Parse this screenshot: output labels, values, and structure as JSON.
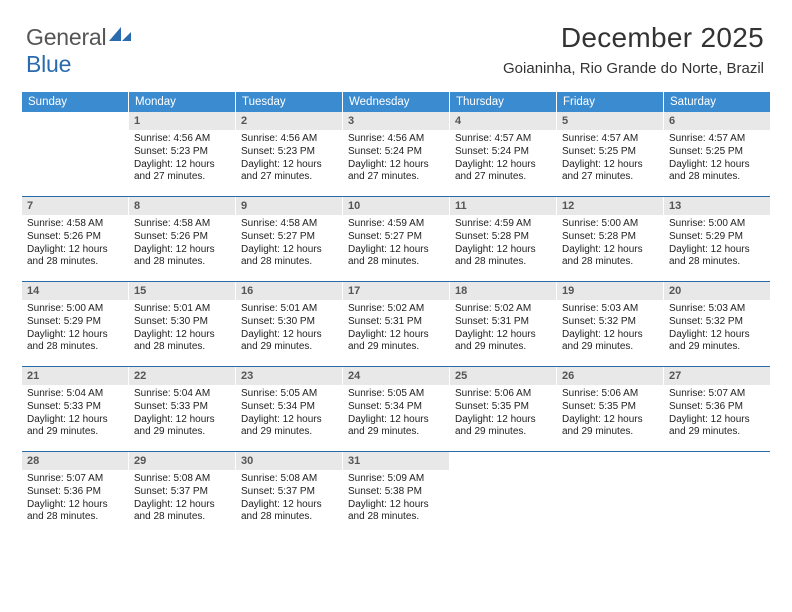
{
  "logo": {
    "text_general": "General",
    "text_blue": "Blue"
  },
  "header": {
    "title": "December 2025",
    "subtitle": "Goianinha, Rio Grande do Norte, Brazil"
  },
  "colors": {
    "header_bg": "#3b8bd0",
    "header_text": "#ffffff",
    "week_border": "#2b6aa8",
    "daynum_bg": "#e8e8e8",
    "daynum_text": "#555555",
    "body_text": "#222222",
    "logo_gray": "#555555",
    "logo_blue": "#2a6bb0"
  },
  "day_headers": [
    "Sunday",
    "Monday",
    "Tuesday",
    "Wednesday",
    "Thursday",
    "Friday",
    "Saturday"
  ],
  "weeks": [
    [
      {
        "day": "",
        "sunrise": "",
        "sunset": "",
        "day1": "",
        "day2": ""
      },
      {
        "day": "1",
        "sunrise": "Sunrise: 4:56 AM",
        "sunset": "Sunset: 5:23 PM",
        "day1": "Daylight: 12 hours",
        "day2": "and 27 minutes."
      },
      {
        "day": "2",
        "sunrise": "Sunrise: 4:56 AM",
        "sunset": "Sunset: 5:23 PM",
        "day1": "Daylight: 12 hours",
        "day2": "and 27 minutes."
      },
      {
        "day": "3",
        "sunrise": "Sunrise: 4:56 AM",
        "sunset": "Sunset: 5:24 PM",
        "day1": "Daylight: 12 hours",
        "day2": "and 27 minutes."
      },
      {
        "day": "4",
        "sunrise": "Sunrise: 4:57 AM",
        "sunset": "Sunset: 5:24 PM",
        "day1": "Daylight: 12 hours",
        "day2": "and 27 minutes."
      },
      {
        "day": "5",
        "sunrise": "Sunrise: 4:57 AM",
        "sunset": "Sunset: 5:25 PM",
        "day1": "Daylight: 12 hours",
        "day2": "and 27 minutes."
      },
      {
        "day": "6",
        "sunrise": "Sunrise: 4:57 AM",
        "sunset": "Sunset: 5:25 PM",
        "day1": "Daylight: 12 hours",
        "day2": "and 28 minutes."
      }
    ],
    [
      {
        "day": "7",
        "sunrise": "Sunrise: 4:58 AM",
        "sunset": "Sunset: 5:26 PM",
        "day1": "Daylight: 12 hours",
        "day2": "and 28 minutes."
      },
      {
        "day": "8",
        "sunrise": "Sunrise: 4:58 AM",
        "sunset": "Sunset: 5:26 PM",
        "day1": "Daylight: 12 hours",
        "day2": "and 28 minutes."
      },
      {
        "day": "9",
        "sunrise": "Sunrise: 4:58 AM",
        "sunset": "Sunset: 5:27 PM",
        "day1": "Daylight: 12 hours",
        "day2": "and 28 minutes."
      },
      {
        "day": "10",
        "sunrise": "Sunrise: 4:59 AM",
        "sunset": "Sunset: 5:27 PM",
        "day1": "Daylight: 12 hours",
        "day2": "and 28 minutes."
      },
      {
        "day": "11",
        "sunrise": "Sunrise: 4:59 AM",
        "sunset": "Sunset: 5:28 PM",
        "day1": "Daylight: 12 hours",
        "day2": "and 28 minutes."
      },
      {
        "day": "12",
        "sunrise": "Sunrise: 5:00 AM",
        "sunset": "Sunset: 5:28 PM",
        "day1": "Daylight: 12 hours",
        "day2": "and 28 minutes."
      },
      {
        "day": "13",
        "sunrise": "Sunrise: 5:00 AM",
        "sunset": "Sunset: 5:29 PM",
        "day1": "Daylight: 12 hours",
        "day2": "and 28 minutes."
      }
    ],
    [
      {
        "day": "14",
        "sunrise": "Sunrise: 5:00 AM",
        "sunset": "Sunset: 5:29 PM",
        "day1": "Daylight: 12 hours",
        "day2": "and 28 minutes."
      },
      {
        "day": "15",
        "sunrise": "Sunrise: 5:01 AM",
        "sunset": "Sunset: 5:30 PM",
        "day1": "Daylight: 12 hours",
        "day2": "and 28 minutes."
      },
      {
        "day": "16",
        "sunrise": "Sunrise: 5:01 AM",
        "sunset": "Sunset: 5:30 PM",
        "day1": "Daylight: 12 hours",
        "day2": "and 29 minutes."
      },
      {
        "day": "17",
        "sunrise": "Sunrise: 5:02 AM",
        "sunset": "Sunset: 5:31 PM",
        "day1": "Daylight: 12 hours",
        "day2": "and 29 minutes."
      },
      {
        "day": "18",
        "sunrise": "Sunrise: 5:02 AM",
        "sunset": "Sunset: 5:31 PM",
        "day1": "Daylight: 12 hours",
        "day2": "and 29 minutes."
      },
      {
        "day": "19",
        "sunrise": "Sunrise: 5:03 AM",
        "sunset": "Sunset: 5:32 PM",
        "day1": "Daylight: 12 hours",
        "day2": "and 29 minutes."
      },
      {
        "day": "20",
        "sunrise": "Sunrise: 5:03 AM",
        "sunset": "Sunset: 5:32 PM",
        "day1": "Daylight: 12 hours",
        "day2": "and 29 minutes."
      }
    ],
    [
      {
        "day": "21",
        "sunrise": "Sunrise: 5:04 AM",
        "sunset": "Sunset: 5:33 PM",
        "day1": "Daylight: 12 hours",
        "day2": "and 29 minutes."
      },
      {
        "day": "22",
        "sunrise": "Sunrise: 5:04 AM",
        "sunset": "Sunset: 5:33 PM",
        "day1": "Daylight: 12 hours",
        "day2": "and 29 minutes."
      },
      {
        "day": "23",
        "sunrise": "Sunrise: 5:05 AM",
        "sunset": "Sunset: 5:34 PM",
        "day1": "Daylight: 12 hours",
        "day2": "and 29 minutes."
      },
      {
        "day": "24",
        "sunrise": "Sunrise: 5:05 AM",
        "sunset": "Sunset: 5:34 PM",
        "day1": "Daylight: 12 hours",
        "day2": "and 29 minutes."
      },
      {
        "day": "25",
        "sunrise": "Sunrise: 5:06 AM",
        "sunset": "Sunset: 5:35 PM",
        "day1": "Daylight: 12 hours",
        "day2": "and 29 minutes."
      },
      {
        "day": "26",
        "sunrise": "Sunrise: 5:06 AM",
        "sunset": "Sunset: 5:35 PM",
        "day1": "Daylight: 12 hours",
        "day2": "and 29 minutes."
      },
      {
        "day": "27",
        "sunrise": "Sunrise: 5:07 AM",
        "sunset": "Sunset: 5:36 PM",
        "day1": "Daylight: 12 hours",
        "day2": "and 29 minutes."
      }
    ],
    [
      {
        "day": "28",
        "sunrise": "Sunrise: 5:07 AM",
        "sunset": "Sunset: 5:36 PM",
        "day1": "Daylight: 12 hours",
        "day2": "and 28 minutes."
      },
      {
        "day": "29",
        "sunrise": "Sunrise: 5:08 AM",
        "sunset": "Sunset: 5:37 PM",
        "day1": "Daylight: 12 hours",
        "day2": "and 28 minutes."
      },
      {
        "day": "30",
        "sunrise": "Sunrise: 5:08 AM",
        "sunset": "Sunset: 5:37 PM",
        "day1": "Daylight: 12 hours",
        "day2": "and 28 minutes."
      },
      {
        "day": "31",
        "sunrise": "Sunrise: 5:09 AM",
        "sunset": "Sunset: 5:38 PM",
        "day1": "Daylight: 12 hours",
        "day2": "and 28 minutes."
      },
      {
        "day": "",
        "sunrise": "",
        "sunset": "",
        "day1": "",
        "day2": ""
      },
      {
        "day": "",
        "sunrise": "",
        "sunset": "",
        "day1": "",
        "day2": ""
      },
      {
        "day": "",
        "sunrise": "",
        "sunset": "",
        "day1": "",
        "day2": ""
      }
    ]
  ]
}
